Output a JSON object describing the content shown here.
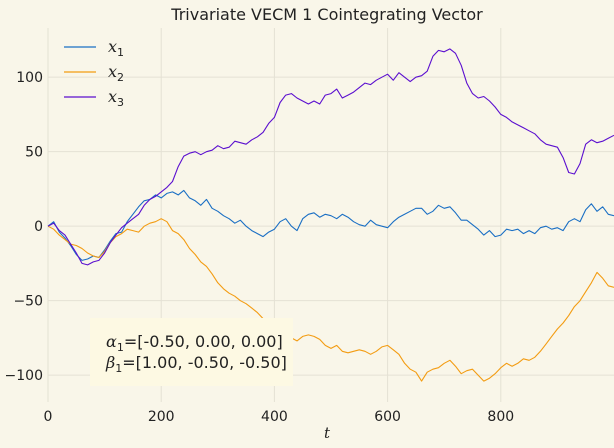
{
  "chart_data": {
    "type": "line",
    "title": "Trivariate VECM 1 Cointegrating Vector",
    "xlabel": "t",
    "ylabel": "",
    "xlim": [
      0,
      1000
    ],
    "ylim": [
      -118,
      133
    ],
    "xticks": [
      0,
      200,
      400,
      600,
      800
    ],
    "yticks": [
      -100,
      -50,
      0,
      50,
      100
    ],
    "grid": true,
    "legend_position": "top-left",
    "series": [
      {
        "name": "x1",
        "name_base": "x",
        "name_sub": "1",
        "color": "#1a6fc4",
        "points": [
          [
            0,
            0
          ],
          [
            10,
            3
          ],
          [
            20,
            -4
          ],
          [
            30,
            -8
          ],
          [
            40,
            -13
          ],
          [
            50,
            -19
          ],
          [
            60,
            -23
          ],
          [
            70,
            -22
          ],
          [
            80,
            -20
          ],
          [
            90,
            -21
          ],
          [
            100,
            -16
          ],
          [
            110,
            -10
          ],
          [
            120,
            -5
          ],
          [
            130,
            -4
          ],
          [
            140,
            3
          ],
          [
            150,
            8
          ],
          [
            160,
            13
          ],
          [
            170,
            17
          ],
          [
            180,
            18
          ],
          [
            190,
            21
          ],
          [
            200,
            19
          ],
          [
            210,
            22
          ],
          [
            220,
            23
          ],
          [
            230,
            21
          ],
          [
            240,
            24
          ],
          [
            250,
            19
          ],
          [
            260,
            17
          ],
          [
            270,
            14
          ],
          [
            280,
            18
          ],
          [
            290,
            12
          ],
          [
            300,
            10
          ],
          [
            310,
            7
          ],
          [
            320,
            5
          ],
          [
            330,
            2
          ],
          [
            340,
            4
          ],
          [
            350,
            0
          ],
          [
            360,
            -3
          ],
          [
            370,
            -5
          ],
          [
            380,
            -7
          ],
          [
            390,
            -4
          ],
          [
            400,
            -2
          ],
          [
            410,
            3
          ],
          [
            420,
            5
          ],
          [
            430,
            0
          ],
          [
            440,
            -3
          ],
          [
            450,
            5
          ],
          [
            460,
            8
          ],
          [
            470,
            9
          ],
          [
            480,
            6
          ],
          [
            490,
            8
          ],
          [
            500,
            7
          ],
          [
            510,
            5
          ],
          [
            520,
            8
          ],
          [
            530,
            6
          ],
          [
            540,
            3
          ],
          [
            550,
            1
          ],
          [
            560,
            0
          ],
          [
            570,
            4
          ],
          [
            580,
            1
          ],
          [
            590,
            0
          ],
          [
            600,
            -1
          ],
          [
            610,
            3
          ],
          [
            620,
            6
          ],
          [
            630,
            8
          ],
          [
            640,
            10
          ],
          [
            650,
            12
          ],
          [
            660,
            12
          ],
          [
            670,
            8
          ],
          [
            680,
            10
          ],
          [
            690,
            14
          ],
          [
            700,
            12
          ],
          [
            710,
            13
          ],
          [
            720,
            9
          ],
          [
            730,
            4
          ],
          [
            740,
            4
          ],
          [
            750,
            1
          ],
          [
            760,
            -2
          ],
          [
            770,
            -6
          ],
          [
            780,
            -3
          ],
          [
            790,
            -7
          ],
          [
            800,
            -6
          ],
          [
            810,
            -2
          ],
          [
            820,
            -3
          ],
          [
            830,
            -2
          ],
          [
            840,
            -5
          ],
          [
            850,
            -3
          ],
          [
            860,
            -5
          ],
          [
            870,
            -1
          ],
          [
            880,
            0
          ],
          [
            890,
            -2
          ],
          [
            900,
            -1
          ],
          [
            910,
            -3
          ],
          [
            920,
            3
          ],
          [
            930,
            5
          ],
          [
            940,
            3
          ],
          [
            950,
            11
          ],
          [
            960,
            15
          ],
          [
            970,
            10
          ],
          [
            980,
            13
          ],
          [
            990,
            8
          ],
          [
            1000,
            7
          ]
        ]
      },
      {
        "name": "x2",
        "name_base": "x",
        "name_sub": "2",
        "color": "#f39c12",
        "points": [
          [
            0,
            0
          ],
          [
            10,
            -2
          ],
          [
            20,
            -6
          ],
          [
            30,
            -9
          ],
          [
            40,
            -12
          ],
          [
            50,
            -13
          ],
          [
            60,
            -15
          ],
          [
            70,
            -18
          ],
          [
            80,
            -20
          ],
          [
            90,
            -21
          ],
          [
            100,
            -17
          ],
          [
            110,
            -11
          ],
          [
            120,
            -7
          ],
          [
            130,
            -5
          ],
          [
            140,
            -2
          ],
          [
            150,
            -3
          ],
          [
            160,
            -4
          ],
          [
            170,
            0
          ],
          [
            180,
            2
          ],
          [
            190,
            3
          ],
          [
            200,
            5
          ],
          [
            210,
            3
          ],
          [
            220,
            -3
          ],
          [
            230,
            -5
          ],
          [
            240,
            -9
          ],
          [
            250,
            -15
          ],
          [
            260,
            -19
          ],
          [
            270,
            -24
          ],
          [
            280,
            -27
          ],
          [
            290,
            -32
          ],
          [
            300,
            -38
          ],
          [
            310,
            -42
          ],
          [
            320,
            -45
          ],
          [
            330,
            -47
          ],
          [
            340,
            -50
          ],
          [
            350,
            -52
          ],
          [
            360,
            -55
          ],
          [
            370,
            -58
          ],
          [
            380,
            -62
          ],
          [
            390,
            -66
          ],
          [
            400,
            -69
          ],
          [
            410,
            -71
          ],
          [
            420,
            -73
          ],
          [
            430,
            -75
          ],
          [
            440,
            -77
          ],
          [
            450,
            -74
          ],
          [
            460,
            -73
          ],
          [
            470,
            -74
          ],
          [
            480,
            -76
          ],
          [
            490,
            -80
          ],
          [
            500,
            -82
          ],
          [
            510,
            -80
          ],
          [
            520,
            -84
          ],
          [
            530,
            -85
          ],
          [
            540,
            -84
          ],
          [
            550,
            -83
          ],
          [
            560,
            -84
          ],
          [
            570,
            -86
          ],
          [
            580,
            -84
          ],
          [
            590,
            -81
          ],
          [
            600,
            -80
          ],
          [
            610,
            -83
          ],
          [
            620,
            -86
          ],
          [
            630,
            -92
          ],
          [
            640,
            -96
          ],
          [
            650,
            -98
          ],
          [
            660,
            -104
          ],
          [
            670,
            -98
          ],
          [
            680,
            -96
          ],
          [
            690,
            -95
          ],
          [
            700,
            -92
          ],
          [
            710,
            -90
          ],
          [
            720,
            -94
          ],
          [
            730,
            -99
          ],
          [
            740,
            -97
          ],
          [
            750,
            -96
          ],
          [
            760,
            -100
          ],
          [
            770,
            -104
          ],
          [
            780,
            -102
          ],
          [
            790,
            -99
          ],
          [
            800,
            -95
          ],
          [
            810,
            -92
          ],
          [
            820,
            -94
          ],
          [
            830,
            -92
          ],
          [
            840,
            -89
          ],
          [
            850,
            -90
          ],
          [
            860,
            -88
          ],
          [
            870,
            -84
          ],
          [
            880,
            -79
          ],
          [
            890,
            -74
          ],
          [
            900,
            -69
          ],
          [
            910,
            -65
          ],
          [
            920,
            -60
          ],
          [
            930,
            -54
          ],
          [
            940,
            -50
          ],
          [
            950,
            -44
          ],
          [
            960,
            -38
          ],
          [
            970,
            -31
          ],
          [
            980,
            -35
          ],
          [
            990,
            -40
          ],
          [
            1000,
            -41
          ]
        ]
      },
      {
        "name": "x3",
        "name_base": "x",
        "name_sub": "3",
        "color": "#5b0fcf",
        "points": [
          [
            0,
            0
          ],
          [
            10,
            2
          ],
          [
            20,
            -3
          ],
          [
            30,
            -6
          ],
          [
            40,
            -12
          ],
          [
            50,
            -18
          ],
          [
            60,
            -25
          ],
          [
            70,
            -26
          ],
          [
            80,
            -24
          ],
          [
            90,
            -23
          ],
          [
            100,
            -18
          ],
          [
            110,
            -11
          ],
          [
            120,
            -6
          ],
          [
            130,
            -1
          ],
          [
            140,
            2
          ],
          [
            150,
            5
          ],
          [
            160,
            8
          ],
          [
            170,
            14
          ],
          [
            180,
            18
          ],
          [
            190,
            20
          ],
          [
            200,
            23
          ],
          [
            210,
            26
          ],
          [
            220,
            30
          ],
          [
            230,
            40
          ],
          [
            240,
            47
          ],
          [
            250,
            49
          ],
          [
            260,
            50
          ],
          [
            270,
            48
          ],
          [
            280,
            50
          ],
          [
            290,
            51
          ],
          [
            300,
            54
          ],
          [
            310,
            52
          ],
          [
            320,
            53
          ],
          [
            330,
            57
          ],
          [
            340,
            56
          ],
          [
            350,
            55
          ],
          [
            360,
            58
          ],
          [
            370,
            60
          ],
          [
            380,
            63
          ],
          [
            390,
            69
          ],
          [
            400,
            73
          ],
          [
            410,
            83
          ],
          [
            420,
            88
          ],
          [
            430,
            89
          ],
          [
            440,
            86
          ],
          [
            450,
            84
          ],
          [
            460,
            82
          ],
          [
            470,
            84
          ],
          [
            480,
            82
          ],
          [
            490,
            88
          ],
          [
            500,
            89
          ],
          [
            510,
            92
          ],
          [
            520,
            86
          ],
          [
            530,
            88
          ],
          [
            540,
            90
          ],
          [
            550,
            93
          ],
          [
            560,
            96
          ],
          [
            570,
            95
          ],
          [
            580,
            98
          ],
          [
            590,
            100
          ],
          [
            600,
            102
          ],
          [
            610,
            98
          ],
          [
            620,
            103
          ],
          [
            630,
            100
          ],
          [
            640,
            97
          ],
          [
            650,
            100
          ],
          [
            660,
            101
          ],
          [
            670,
            104
          ],
          [
            680,
            114
          ],
          [
            690,
            118
          ],
          [
            700,
            117
          ],
          [
            710,
            119
          ],
          [
            720,
            116
          ],
          [
            730,
            108
          ],
          [
            740,
            96
          ],
          [
            750,
            89
          ],
          [
            760,
            86
          ],
          [
            770,
            87
          ],
          [
            780,
            84
          ],
          [
            790,
            80
          ],
          [
            800,
            75
          ],
          [
            810,
            73
          ],
          [
            820,
            70
          ],
          [
            830,
            68
          ],
          [
            840,
            66
          ],
          [
            850,
            64
          ],
          [
            860,
            62
          ],
          [
            870,
            58
          ],
          [
            880,
            55
          ],
          [
            890,
            54
          ],
          [
            900,
            53
          ],
          [
            910,
            46
          ],
          [
            920,
            36
          ],
          [
            930,
            35
          ],
          [
            940,
            42
          ],
          [
            950,
            55
          ],
          [
            960,
            58
          ],
          [
            970,
            56
          ],
          [
            980,
            57
          ],
          [
            990,
            59
          ],
          [
            1000,
            61
          ]
        ]
      }
    ],
    "annotation": {
      "line1_symbol": "α",
      "line1_sub": "1",
      "line1_value": "=[-0.50, 0.00, 0.00]",
      "line2_symbol": "β",
      "line2_sub": "1",
      "line2_value": "=[1.00, -0.50, -0.50]"
    }
  }
}
